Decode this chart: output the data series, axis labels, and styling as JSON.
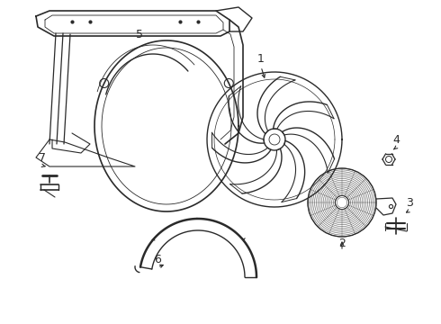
{
  "background_color": "#ffffff",
  "line_color": "#2a2a2a",
  "line_width": 1.0,
  "figsize": [
    4.9,
    3.6
  ],
  "dpi": 100,
  "label_fontsize": 9
}
